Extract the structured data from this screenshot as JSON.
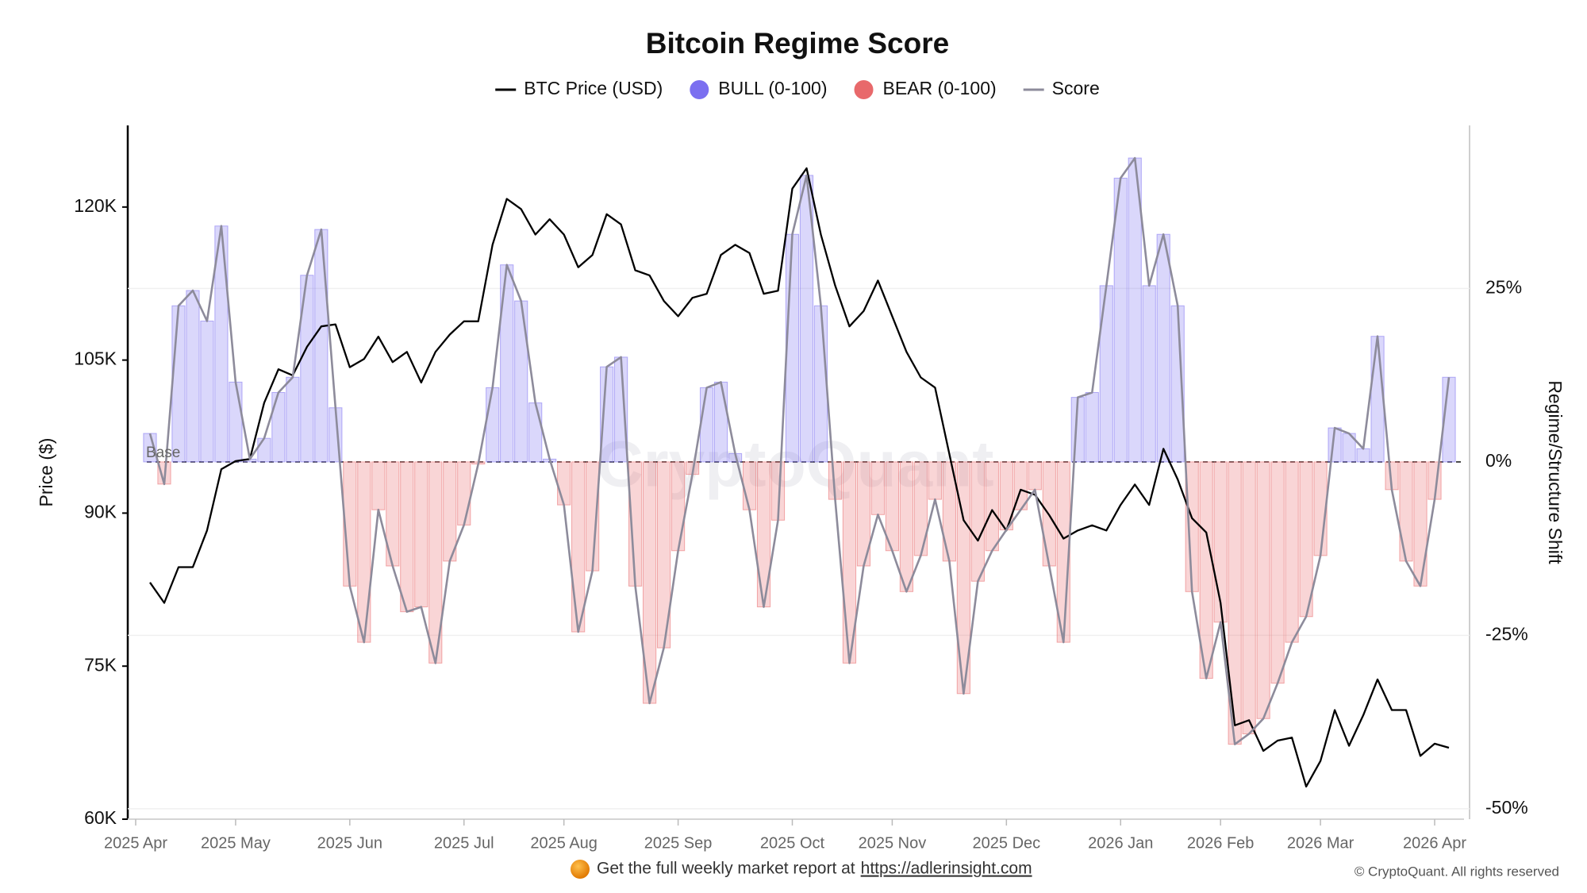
{
  "chart_data": {
    "type": "line",
    "title": "Bitcoin Regime Score",
    "y_label": "Price ($)",
    "y2_label": "Regime/Structure Shift",
    "base_label": "Base",
    "watermark": "CryptoQuant",
    "footer": {
      "text": "Get the full weekly market report at",
      "link": "https://adlerinsight.com"
    },
    "copyright": "© CryptoQuant. All rights reserved",
    "categories": [
      "2025 Apr",
      null,
      null,
      null,
      null,
      null,
      null,
      "2025 May",
      null,
      null,
      null,
      null,
      null,
      null,
      null,
      "2025 Jun",
      null,
      null,
      null,
      null,
      null,
      null,
      null,
      "2025 Jul",
      null,
      null,
      null,
      null,
      null,
      null,
      "2025 Aug",
      null,
      null,
      null,
      null,
      null,
      null,
      null,
      "2025 Sep",
      null,
      null,
      null,
      null,
      null,
      null,
      null,
      "2025 Oct",
      null,
      null,
      null,
      null,
      null,
      null,
      "2025 Nov",
      null,
      null,
      null,
      null,
      null,
      null,
      null,
      "2025 Dec",
      null,
      null,
      null,
      null,
      null,
      null,
      null,
      "2026 Jan",
      null,
      null,
      null,
      null,
      null,
      null,
      "2026 Feb",
      null,
      null,
      null,
      null,
      null,
      null,
      "2026 Mar",
      null,
      null,
      null,
      null,
      null,
      null,
      null,
      "2026 Apr",
      null
    ],
    "series": [
      {
        "name": "BTC Price (USD)",
        "type": "line",
        "color": "#000000",
        "axis": "y",
        "values": [
          null,
          83200,
          81200,
          84700,
          84700,
          88300,
          94300,
          95100,
          95300,
          100800,
          104100,
          103500,
          106300,
          108300,
          108500,
          104300,
          105100,
          107300,
          104800,
          105800,
          102800,
          105800,
          107500,
          108800,
          108800,
          116300,
          120800,
          119800,
          117300,
          118800,
          117300,
          114100,
          115300,
          119300,
          118300,
          113800,
          113300,
          110800,
          109300,
          111100,
          111500,
          115300,
          116300,
          115500,
          111500,
          111800,
          121800,
          123800,
          117300,
          112300,
          108300,
          109800,
          112800,
          109300,
          105800,
          103300,
          102300,
          95800,
          89300,
          87300,
          90300,
          88300,
          92300,
          91800,
          89800,
          87500,
          88300,
          88800,
          88300,
          90800,
          92800,
          90800,
          96300,
          93300,
          89500,
          88100,
          81200,
          69200,
          69700,
          66700,
          67700,
          68000,
          63200,
          65700,
          70700,
          67200,
          70200,
          73700,
          70700,
          70700,
          66200,
          67400,
          67000
        ]
      },
      {
        "name": "BULL (0-100)",
        "type": "bar",
        "color": "#7b6ff0"
      },
      {
        "name": "BEAR (0-100)",
        "type": "bar",
        "color": "#e8696b"
      },
      {
        "name": "Score",
        "type": "line",
        "color": "#8d8b9b",
        "axis": "y2",
        "values": [
          null,
          4.1,
          -3.2,
          22.5,
          24.7,
          20.3,
          34.0,
          11.5,
          0.4,
          3.4,
          10.0,
          12.2,
          26.9,
          33.5,
          7.8,
          -17.9,
          -26.0,
          -6.9,
          -15.0,
          -21.6,
          -20.9,
          -29.0,
          -14.3,
          -9.1,
          -0.3,
          10.7,
          28.4,
          23.2,
          8.5,
          0.4,
          -6.2,
          -24.5,
          -15.7,
          13.7,
          15.1,
          -17.9,
          -34.8,
          -26.8,
          -12.8,
          -1.8,
          10.7,
          11.5,
          1.2,
          -6.9,
          -20.9,
          -8.4,
          32.8,
          41.3,
          22.5,
          -5.4,
          -29.0,
          -15.0,
          -7.6,
          -12.8,
          -18.7,
          -13.5,
          -5.4,
          -14.3,
          -33.4,
          -17.2,
          -12.8,
          -9.8,
          -6.9,
          -4.0,
          -15.0,
          -26.0,
          9.3,
          10.0,
          25.4,
          40.9,
          43.8,
          25.4,
          32.8,
          22.5,
          -18.7,
          -31.2,
          -23.1,
          -40.7,
          -39.2,
          -37.0,
          -31.9,
          -26.0,
          -22.3,
          -13.5,
          4.9,
          4.1,
          1.9,
          18.1,
          -4.0,
          -14.3,
          -17.9,
          -5.4,
          12.2
        ]
      }
    ],
    "ylim": [
      60000,
      128000
    ],
    "yticks": [
      {
        "value": 60000,
        "label": "60K"
      },
      {
        "value": 75000,
        "label": "75K"
      },
      {
        "value": 90000,
        "label": "90K"
      },
      {
        "value": 105000,
        "label": "105K"
      },
      {
        "value": 120000,
        "label": "120K"
      }
    ],
    "y2lim": [
      -51.5,
      48.5
    ],
    "y2ticks": [
      {
        "value": -50,
        "label": "-50%"
      },
      {
        "value": -25,
        "label": "-25%"
      },
      {
        "value": 0,
        "label": "0%"
      },
      {
        "value": 25,
        "label": "25%"
      }
    ],
    "grid": true
  }
}
